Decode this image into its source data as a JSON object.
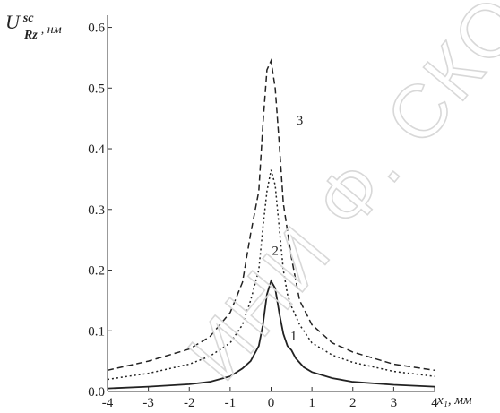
{
  "watermark": "ИНИ Ф. СКОРИНЫ",
  "chart_data": {
    "type": "line",
    "xlabel": "x₁, мм",
    "ylabel": {
      "main": "U",
      "sup": "sc",
      "sub": "Rz",
      "unit": ", нм"
    },
    "xlim": [
      -4,
      4
    ],
    "ylim": [
      0,
      0.62
    ],
    "x_ticks": [
      -4,
      -3,
      -2,
      -1,
      0,
      1,
      2,
      3,
      4
    ],
    "x_tick_labels": [
      "-4",
      "-3",
      "-2",
      "-1",
      "0",
      "1",
      "2",
      "3",
      "4"
    ],
    "y_ticks": [
      0,
      0.1,
      0.2,
      0.3,
      0.4,
      0.5,
      0.6
    ],
    "y_tick_labels": [
      "0.0",
      "0.1",
      "0.2",
      "0.3",
      "0.4",
      "0.5",
      "0.6"
    ],
    "grid": false,
    "series": [
      {
        "name": "1",
        "style": "solid",
        "x": [
          -4,
          -3,
          -2,
          -1.5,
          -1,
          -0.7,
          -0.5,
          -0.3,
          -0.2,
          -0.1,
          0,
          0.1,
          0.2,
          0.3,
          0.4,
          0.5,
          0.6,
          0.8,
          1,
          1.5,
          2,
          3,
          4
        ],
        "y": [
          0.005,
          0.008,
          0.012,
          0.016,
          0.025,
          0.038,
          0.05,
          0.075,
          0.11,
          0.16,
          0.182,
          0.17,
          0.13,
          0.095,
          0.075,
          0.068,
          0.055,
          0.04,
          0.032,
          0.022,
          0.016,
          0.011,
          0.008
        ]
      },
      {
        "name": "2",
        "style": "dotted",
        "x": [
          -4,
          -3,
          -2,
          -1.5,
          -1,
          -0.7,
          -0.5,
          -0.3,
          -0.2,
          -0.1,
          0,
          0.1,
          0.2,
          0.3,
          0.4,
          0.5,
          0.7,
          1,
          1.5,
          2,
          3,
          4
        ],
        "y": [
          0.02,
          0.03,
          0.045,
          0.058,
          0.08,
          0.11,
          0.15,
          0.2,
          0.27,
          0.33,
          0.365,
          0.34,
          0.27,
          0.2,
          0.16,
          0.14,
          0.11,
          0.08,
          0.06,
          0.048,
          0.033,
          0.025
        ]
      },
      {
        "name": "3",
        "style": "dashed",
        "x": [
          -4,
          -3,
          -2,
          -1.5,
          -1,
          -0.7,
          -0.5,
          -0.3,
          -0.2,
          -0.1,
          0,
          0.1,
          0.2,
          0.3,
          0.5,
          0.7,
          1,
          1.5,
          2,
          3,
          4
        ],
        "y": [
          0.035,
          0.05,
          0.07,
          0.09,
          0.13,
          0.18,
          0.26,
          0.33,
          0.44,
          0.53,
          0.545,
          0.5,
          0.41,
          0.31,
          0.22,
          0.15,
          0.11,
          0.08,
          0.065,
          0.045,
          0.035
        ]
      }
    ],
    "curve_labels": [
      {
        "text": "1",
        "x": 0.55,
        "y": 0.085
      },
      {
        "text": "2",
        "x": 0.1,
        "y": 0.225
      },
      {
        "text": "3",
        "x": 0.7,
        "y": 0.44
      }
    ]
  }
}
